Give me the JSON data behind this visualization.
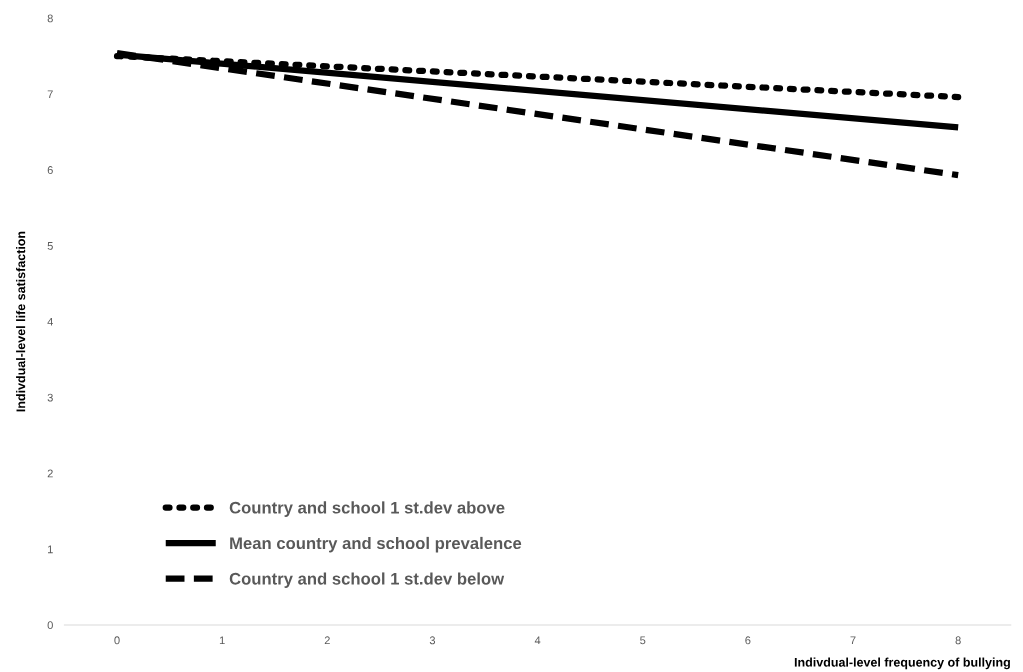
{
  "chart_data": {
    "type": "line",
    "xlabel": "Indivdual-level frequency of bullying",
    "ylabel": "Indivdual-level life satisfaction",
    "x": [
      0,
      8
    ],
    "series": [
      {
        "name": "Country and school 1 st.dev above",
        "color": "#000000",
        "values": [
          7.5,
          6.96
        ],
        "line_style": "dotted"
      },
      {
        "name": "Mean country and school prevalence",
        "color": "#000000",
        "values": [
          7.52,
          6.56
        ],
        "line_style": "solid"
      },
      {
        "name": "Country and school 1 st.dev below",
        "color": "#000000",
        "values": [
          7.54,
          5.93
        ],
        "line_style": "dashed"
      }
    ],
    "xlim": [
      -0.5,
      8.5
    ],
    "xticks": [
      0,
      1,
      2,
      3,
      4,
      5,
      6,
      7,
      8
    ],
    "ylim": [
      0,
      8
    ],
    "yticks": [
      0,
      1,
      2,
      3,
      4,
      5,
      6,
      7,
      8
    ],
    "grid": false,
    "legend": "bottom left",
    "marker": "none"
  }
}
